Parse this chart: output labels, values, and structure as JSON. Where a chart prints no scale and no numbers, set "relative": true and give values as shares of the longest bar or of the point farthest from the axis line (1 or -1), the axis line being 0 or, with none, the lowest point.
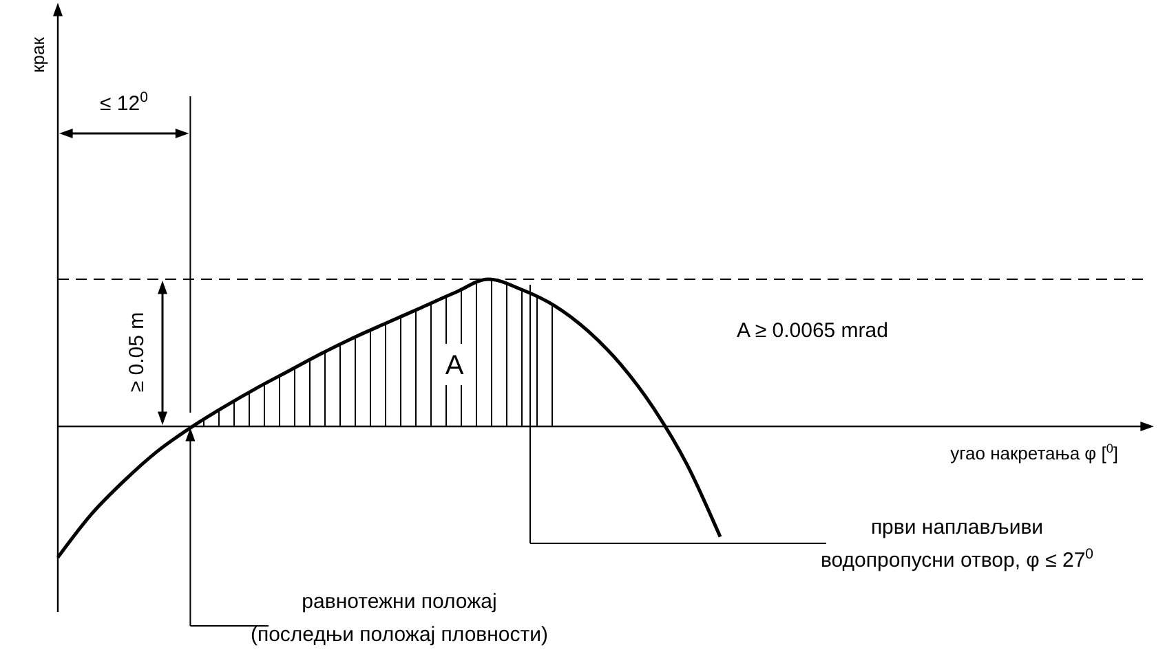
{
  "chart_data": {
    "type": "line",
    "relative": true,
    "categories": [
      null,
      null,
      null,
      null,
      null,
      null,
      null,
      null,
      null,
      null,
      null,
      null,
      null,
      null,
      null,
      null,
      null,
      null,
      null,
      null,
      null
    ],
    "series": [
      {
        "color": "#000000",
        "values": [
          -0.89,
          -0.6,
          -0.37,
          -0.17,
          -0.01,
          0.13,
          0.26,
          0.38,
          0.5,
          0.61,
          0.71,
          0.81,
          0.91,
          1,
          0.93,
          0.82,
          0.65,
          0.42,
          0.12,
          -0.26,
          -0.75
        ]
      },
      {
        "type": "area",
        "color": "#000000",
        "values": [
          null,
          null,
          null,
          null,
          -0.01,
          0.13,
          0.26,
          0.38,
          0.5,
          0.61,
          0.71,
          0.81,
          0.91,
          1,
          0.93,
          0.82,
          null,
          null,
          null,
          null,
          null
        ]
      }
    ],
    "ref_lines": [
      {
        "axis": "y",
        "value": 1,
        "line_style": "dashed",
        "color": "#000000"
      }
    ],
    "annotations": [
      "≤ 12$^{0}$",
      "≥ 0.05 m",
      "A",
      "A ≥ 0.0065 mrad",
      "равнотежни положај\n(последњи положај пловности)",
      "први наплављиви\nводопропусни отвор, φ ≤ 27$^{0}$",
      "угао накретања φ [$^{0}$]",
      "крак"
    ]
  }
}
